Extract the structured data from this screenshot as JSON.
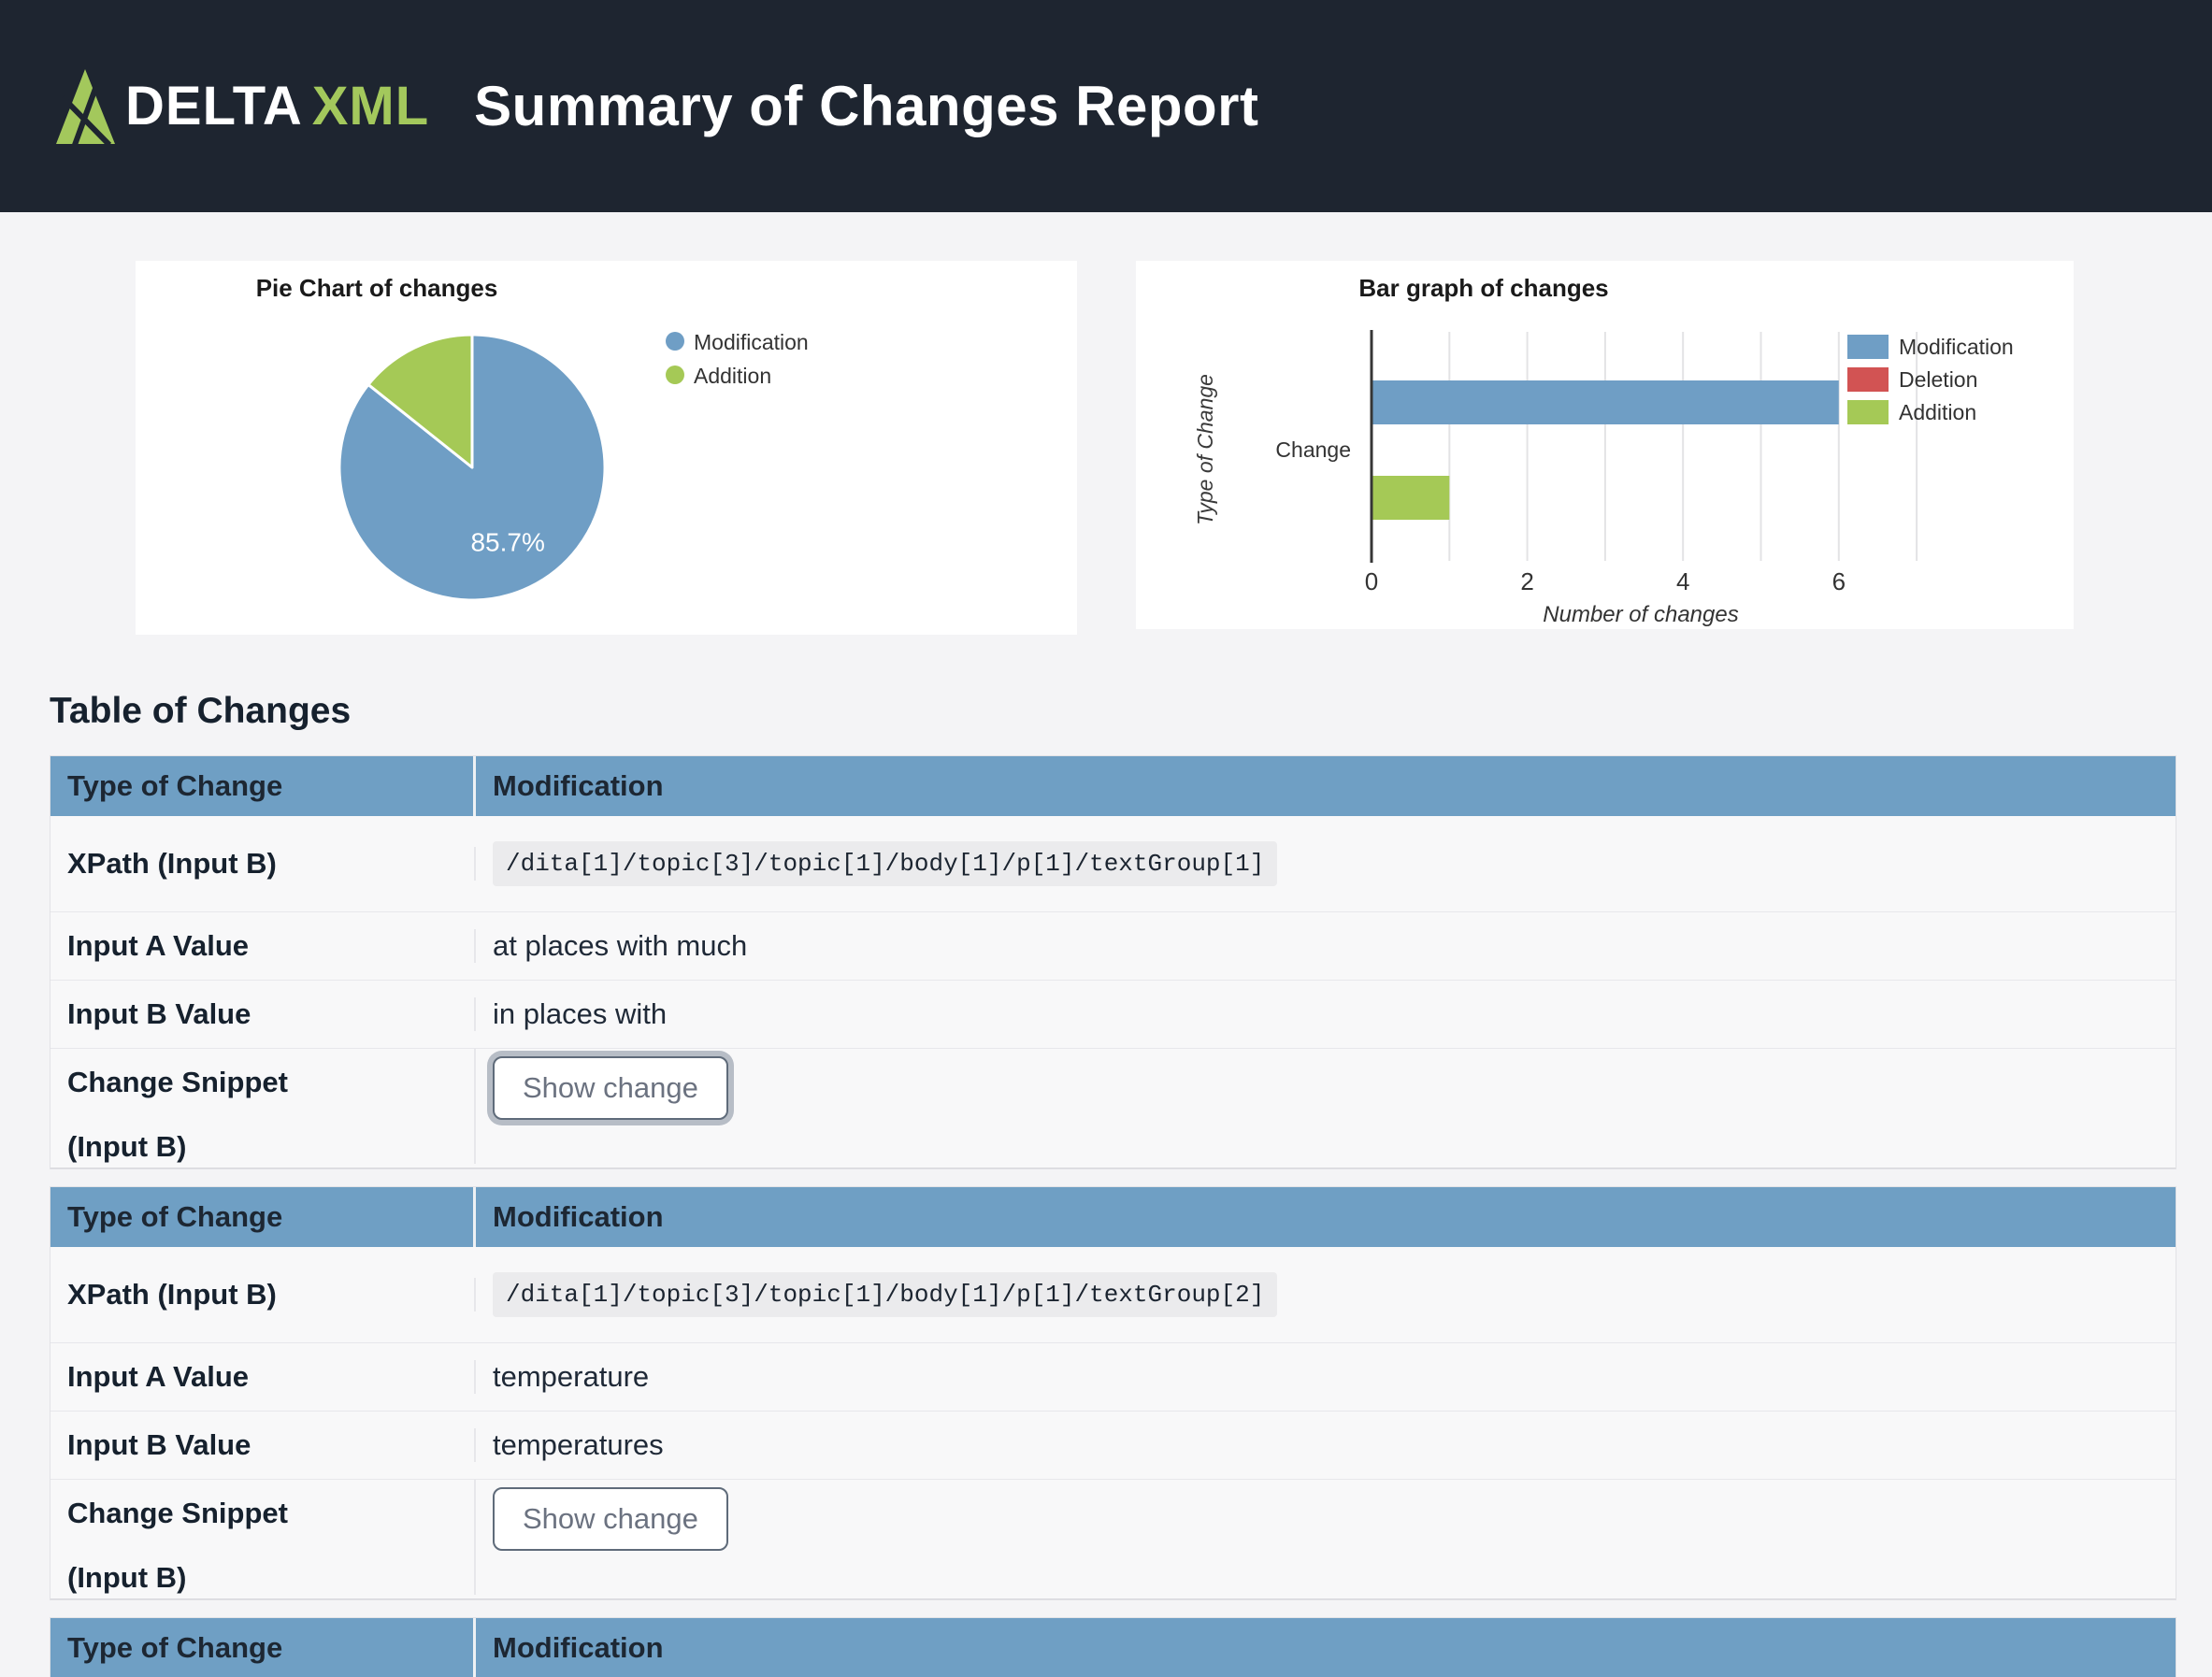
{
  "header": {
    "brand_delta": "DELTA",
    "brand_xml": "XML",
    "title": "Summary of Changes Report"
  },
  "colors": {
    "header_bg": "#1e2530",
    "brand_green": "#a3c85c",
    "table_header_blue": "#6f9fc4",
    "modification_blue": "#6f9ec5",
    "deletion_red": "#d25353",
    "addition_green": "#a5c956",
    "page_bg": "#f4f4f6"
  },
  "chart_data": [
    {
      "type": "pie",
      "title": "Pie Chart of changes",
      "labels": [
        "Modification",
        "Addition"
      ],
      "values": [
        6,
        1
      ],
      "percentages": [
        85.7,
        14.3
      ],
      "slice_labels": [
        "85.7%",
        ""
      ],
      "colors": [
        "#6f9ec5",
        "#a5c956"
      ],
      "legend_position": "right",
      "start_angle_deg": 0,
      "direction": "clockwise"
    },
    {
      "type": "bar",
      "orientation": "horizontal",
      "title": "Bar graph of changes",
      "categories": [
        "Change"
      ],
      "series": [
        {
          "name": "Modification",
          "values": [
            6
          ]
        },
        {
          "name": "Deletion",
          "values": [
            0
          ]
        },
        {
          "name": "Addition",
          "values": [
            1
          ]
        }
      ],
      "colors": [
        "#6f9ec5",
        "#d25353",
        "#a5c956"
      ],
      "xlabel": "Number of changes",
      "ylabel": "Type of Change",
      "xlim": [
        0,
        7
      ],
      "xticks": [
        0,
        2,
        4,
        6
      ],
      "grid": true,
      "legend_position": "right"
    }
  ],
  "table": {
    "heading": "Table of Changes",
    "header_col1": "Type of Change",
    "row_labels": {
      "xpath": "XPath (Input B)",
      "input_a": "Input A Value",
      "input_b": "Input B Value",
      "snippet_line1": "Change Snippet",
      "snippet_line2": "(Input B)"
    },
    "button_label": "Show change",
    "blocks": [
      {
        "change_type": "Modification",
        "xpath": "/dita[1]/topic[3]/topic[1]/body[1]/p[1]/textGroup[1]",
        "input_a": "at places with much",
        "input_b": "in places with",
        "button_focused": true,
        "partial": false
      },
      {
        "change_type": "Modification",
        "xpath": "/dita[1]/topic[3]/topic[1]/body[1]/p[1]/textGroup[2]",
        "input_a": "temperature",
        "input_b": "temperatures",
        "button_focused": false,
        "partial": false
      },
      {
        "change_type": "Modification",
        "partial": true
      }
    ]
  }
}
